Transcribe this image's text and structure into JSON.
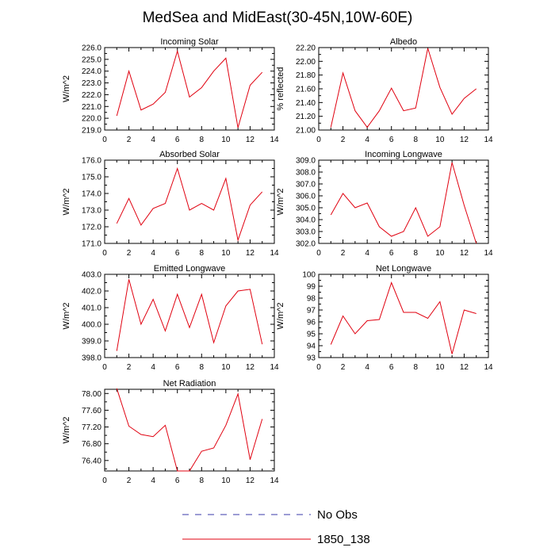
{
  "figure": {
    "title": "MedSea and MidEast(30-45N,10W-60E)"
  },
  "legend": {
    "entries": [
      {
        "label": "No Obs",
        "color": "#3a3aa8",
        "dash": "dashed"
      },
      {
        "label": "1850_138",
        "color": "#e0000f",
        "dash": "solid"
      }
    ]
  },
  "chart_data": [
    {
      "type": "line",
      "title": "Incoming Solar",
      "ylabel": "W/m^2",
      "x": [
        1,
        2,
        3,
        4,
        5,
        6,
        7,
        8,
        9,
        10,
        11,
        12,
        13
      ],
      "series": [
        {
          "name": "1850_138",
          "color": "#e0000f",
          "values": [
            220.2,
            224.0,
            220.7,
            221.2,
            222.2,
            225.7,
            221.8,
            222.6,
            224.0,
            225.1,
            219.2,
            222.8,
            223.9
          ]
        }
      ],
      "xlim": [
        0,
        14
      ],
      "xticks": [
        0,
        2,
        4,
        6,
        8,
        10,
        12,
        14
      ],
      "ylim": [
        219.0,
        226.0
      ],
      "yticks": [
        219.0,
        220.0,
        221.0,
        222.0,
        223.0,
        224.0,
        225.0,
        226.0
      ],
      "ydecimals": 1
    },
    {
      "type": "line",
      "title": "Albedo",
      "ylabel": "% reflected",
      "x": [
        1,
        2,
        3,
        4,
        5,
        6,
        7,
        8,
        9,
        10,
        11,
        12,
        13
      ],
      "series": [
        {
          "name": "1850_138",
          "color": "#e0000f",
          "values": [
            21.04,
            21.83,
            21.28,
            21.04,
            21.28,
            21.61,
            21.28,
            21.32,
            22.19,
            21.62,
            21.23,
            21.46,
            21.6
          ]
        }
      ],
      "xlim": [
        0,
        14
      ],
      "xticks": [
        0,
        2,
        4,
        6,
        8,
        10,
        12,
        14
      ],
      "ylim": [
        21.0,
        22.2
      ],
      "yticks": [
        21.0,
        21.2,
        21.4,
        21.6,
        21.8,
        22.0,
        22.2
      ],
      "ydecimals": 2
    },
    {
      "type": "line",
      "title": "Absorbed Solar",
      "ylabel": "W/m^2",
      "x": [
        1,
        2,
        3,
        4,
        5,
        6,
        7,
        8,
        9,
        10,
        11,
        12,
        13
      ],
      "series": [
        {
          "name": "1850_138",
          "color": "#e0000f",
          "values": [
            172.2,
            173.7,
            172.1,
            173.1,
            173.4,
            175.5,
            173.0,
            173.4,
            173.0,
            174.9,
            171.2,
            173.3,
            174.1
          ]
        }
      ],
      "xlim": [
        0,
        14
      ],
      "xticks": [
        0,
        2,
        4,
        6,
        8,
        10,
        12,
        14
      ],
      "ylim": [
        171.0,
        176.0
      ],
      "yticks": [
        171.0,
        172.0,
        173.0,
        174.0,
        175.0,
        176.0
      ],
      "ydecimals": 1
    },
    {
      "type": "line",
      "title": "Incoming Longwave",
      "ylabel": "W/m^2",
      "x": [
        1,
        2,
        3,
        4,
        5,
        6,
        7,
        8,
        9,
        10,
        11,
        12,
        13
      ],
      "series": [
        {
          "name": "1850_138",
          "color": "#e0000f",
          "values": [
            304.4,
            306.2,
            305.0,
            305.4,
            303.4,
            302.6,
            303.0,
            305.0,
            302.6,
            303.4,
            308.8,
            305.2,
            302.0
          ]
        }
      ],
      "xlim": [
        0,
        14
      ],
      "xticks": [
        0,
        2,
        4,
        6,
        8,
        10,
        12,
        14
      ],
      "ylim": [
        302.0,
        309.0
      ],
      "yticks": [
        302.0,
        303.0,
        304.0,
        305.0,
        306.0,
        307.0,
        308.0,
        309.0
      ],
      "ydecimals": 1
    },
    {
      "type": "line",
      "title": "Emitted Longwave",
      "ylabel": "W/m^2",
      "x": [
        1,
        2,
        3,
        4,
        5,
        6,
        7,
        8,
        9,
        10,
        11,
        12,
        13
      ],
      "series": [
        {
          "name": "1850_138",
          "color": "#e0000f",
          "values": [
            398.4,
            402.7,
            400.0,
            401.5,
            399.6,
            401.8,
            399.8,
            401.8,
            398.9,
            401.1,
            402.0,
            402.1,
            398.8
          ]
        }
      ],
      "xlim": [
        0,
        14
      ],
      "xticks": [
        0,
        2,
        4,
        6,
        8,
        10,
        12,
        14
      ],
      "ylim": [
        398.0,
        403.0
      ],
      "yticks": [
        398.0,
        399.0,
        400.0,
        401.0,
        402.0,
        403.0
      ],
      "ydecimals": 1
    },
    {
      "type": "line",
      "title": "Net Longwave",
      "ylabel": "W/m^2",
      "x": [
        1,
        2,
        3,
        4,
        5,
        6,
        7,
        8,
        9,
        10,
        11,
        12,
        13
      ],
      "series": [
        {
          "name": "1850_138",
          "color": "#e0000f",
          "values": [
            94.1,
            96.5,
            95.0,
            96.1,
            96.2,
            99.3,
            96.8,
            96.8,
            96.3,
            97.7,
            93.3,
            97.0,
            96.7
          ]
        }
      ],
      "xlim": [
        0,
        14
      ],
      "xticks": [
        0,
        2,
        4,
        6,
        8,
        10,
        12,
        14
      ],
      "ylim": [
        93,
        100
      ],
      "yticks": [
        93,
        94,
        95,
        96,
        97,
        98,
        99,
        100
      ],
      "ydecimals": 0
    },
    {
      "type": "line",
      "title": "Net Radiation",
      "ylabel": "W/m^2",
      "x": [
        1,
        2,
        3,
        4,
        5,
        6,
        7,
        8,
        9,
        10,
        11,
        12,
        13
      ],
      "series": [
        {
          "name": "1850_138",
          "color": "#e0000f",
          "values": [
            78.12,
            77.22,
            77.02,
            76.97,
            77.24,
            76.15,
            76.15,
            76.62,
            76.7,
            77.24,
            77.99,
            76.42,
            77.39
          ]
        }
      ],
      "xlim": [
        0,
        14
      ],
      "xticks": [
        0,
        2,
        4,
        6,
        8,
        10,
        12,
        14
      ],
      "ylim": [
        76.15,
        78.1
      ],
      "yticks": [
        76.4,
        76.8,
        77.2,
        77.6,
        78.0
      ],
      "ydecimals": 2
    }
  ]
}
